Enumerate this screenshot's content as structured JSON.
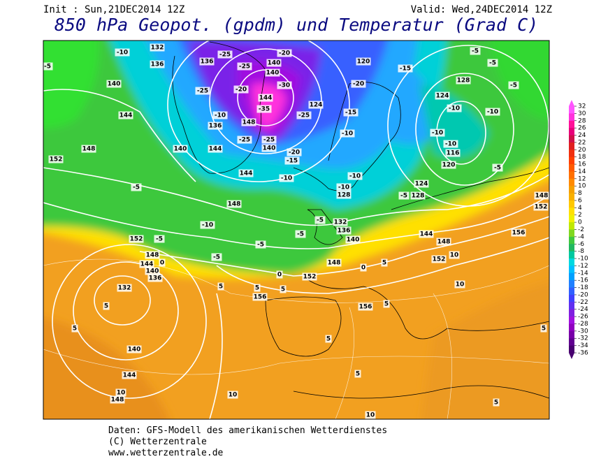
{
  "header": {
    "init": "Init : Sun,21DEC2014 12Z",
    "valid": "Valid: Wed,24DEC2014 12Z",
    "title": "850 hPa Geopot. (gpdm) und Temperatur (Grad C)"
  },
  "map": {
    "labels": [
      "-10",
      "132",
      "-5",
      "136",
      "140",
      "144",
      "148",
      "152",
      "-5",
      "148",
      "-10",
      "152",
      "-5",
      "148",
      "144",
      "0",
      "140",
      "136",
      "132",
      "5",
      "5",
      "140",
      "144",
      "10",
      "148",
      "10",
      "-5",
      "-5",
      "-5",
      "0",
      "152",
      "5",
      "5",
      "5",
      "156",
      "156",
      "5",
      "5",
      "5",
      "10",
      "5",
      "5",
      "10",
      "152",
      "148",
      "144",
      "156",
      "152",
      "148",
      "128",
      "-5",
      "124",
      "-5",
      "120",
      "116",
      "-10",
      "-10",
      "-10",
      "-10",
      "124",
      "128",
      "-5",
      "-5",
      "-5",
      "-15",
      "120",
      "-20",
      "-15",
      "-10",
      "124",
      "-25",
      "-20",
      "-15",
      "-10",
      "144",
      "140",
      "144",
      "136",
      "-10",
      "-20",
      "-25",
      "-25",
      "-25",
      "136",
      "-20",
      "140",
      "140",
      "-30",
      "144",
      "-35",
      "148",
      "-25",
      "-25",
      "140",
      "-10",
      "128",
      "-10",
      "-5",
      "132",
      "136",
      "140",
      "148",
      "0",
      "5",
      "10"
    ]
  },
  "colorbar": {
    "labels": [
      32,
      30,
      28,
      26,
      24,
      22,
      20,
      18,
      16,
      14,
      12,
      10,
      8,
      6,
      4,
      2,
      0,
      -2,
      -4,
      -6,
      -8,
      -10,
      -12,
      -14,
      -16,
      -18,
      -20,
      -22,
      -24,
      -26,
      -28,
      -30,
      -32,
      -34,
      -36
    ],
    "colors": [
      "#ff55ff",
      "#ff33dd",
      "#ff1199",
      "#e8007a",
      "#d0104a",
      "#e02020",
      "#f03010",
      "#ff4000",
      "#ff5a00",
      "#ff7000",
      "#ff8a00",
      "#f5a000",
      "#f8b000",
      "#ffc800",
      "#ffe000",
      "#f0f000",
      "#c0e800",
      "#80d820",
      "#40c840",
      "#20b860",
      "#00c8a0",
      "#00d8e0",
      "#00c0ff",
      "#00a0ff",
      "#2080ff",
      "#3060ff",
      "#4040ff",
      "#6030f0",
      "#8020e0",
      "#a010e0",
      "#9000c0",
      "#7800a8",
      "#600090",
      "#480070"
    ]
  },
  "footer": {
    "lines": [
      "Daten: GFS-Modell des amerikanischen Wetterdienstes",
      "(C) Wetterzentrale",
      "www.wetterzentrale.de"
    ]
  }
}
